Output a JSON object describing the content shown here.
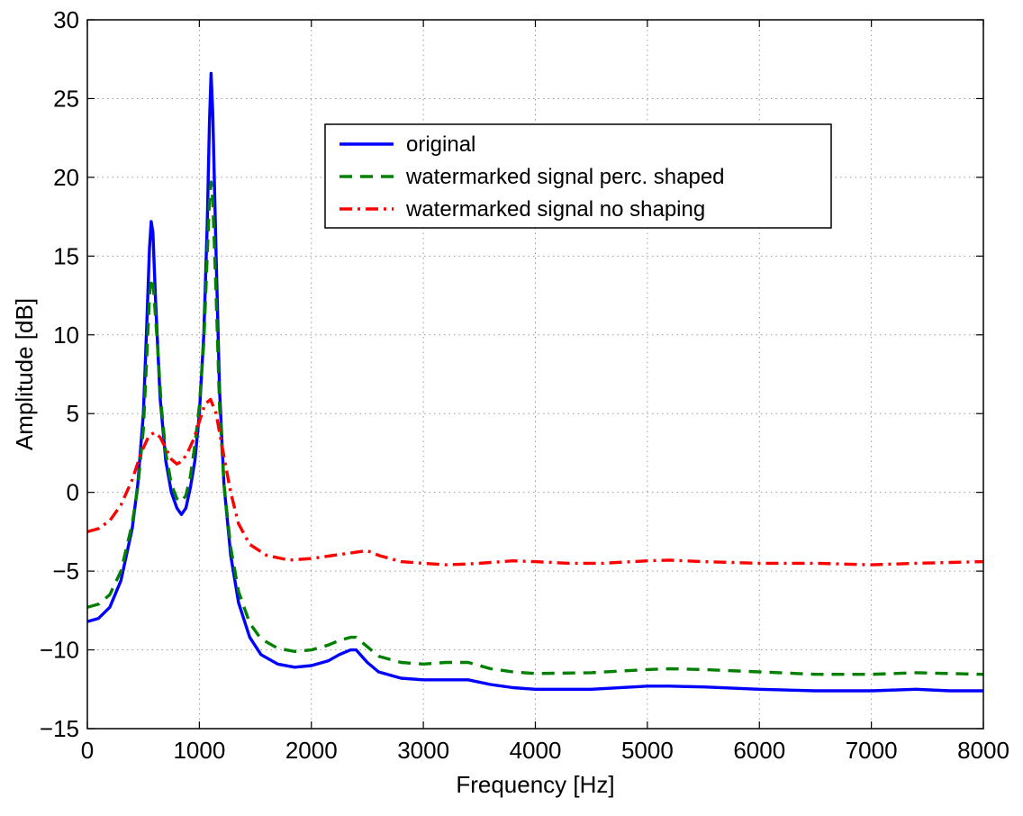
{
  "chart_data": {
    "type": "line",
    "title": "",
    "xlabel": "Frequency [Hz]",
    "ylabel": "Amplitude [dB]",
    "xlim": [
      0,
      8000
    ],
    "ylim": [
      -15,
      30
    ],
    "x_ticks": [
      0,
      1000,
      2000,
      3000,
      4000,
      5000,
      6000,
      7000,
      8000
    ],
    "y_ticks": [
      -15,
      -10,
      -5,
      0,
      5,
      10,
      15,
      20,
      25,
      30
    ],
    "x_tick_labels": [
      "0",
      "1000",
      "2000",
      "3000",
      "4000",
      "5000",
      "6000",
      "7000",
      "8000"
    ],
    "y_tick_labels": [
      "−15",
      "−10",
      "−5",
      "0",
      "5",
      "10",
      "15",
      "20",
      "25",
      "30"
    ],
    "grid": true,
    "legend_position": "top-center",
    "series": [
      {
        "name": "original",
        "color": "#0000ff",
        "style": "solid",
        "points": [
          [
            0,
            -8.2
          ],
          [
            100,
            -8.0
          ],
          [
            200,
            -7.3
          ],
          [
            300,
            -5.6
          ],
          [
            400,
            -2.3
          ],
          [
            450,
            0.5
          ],
          [
            500,
            5.0
          ],
          [
            530,
            10.5
          ],
          [
            555,
            15.5
          ],
          [
            570,
            17.2
          ],
          [
            585,
            16.5
          ],
          [
            610,
            12.0
          ],
          [
            650,
            6.0
          ],
          [
            700,
            2.0
          ],
          [
            750,
            0.0
          ],
          [
            800,
            -1.0
          ],
          [
            840,
            -1.4
          ],
          [
            880,
            -1.0
          ],
          [
            920,
            0.3
          ],
          [
            960,
            2.0
          ],
          [
            1000,
            5.0
          ],
          [
            1040,
            10.0
          ],
          [
            1070,
            17.0
          ],
          [
            1090,
            23.5
          ],
          [
            1105,
            26.6
          ],
          [
            1120,
            24.0
          ],
          [
            1150,
            15.0
          ],
          [
            1180,
            6.5
          ],
          [
            1220,
            0.5
          ],
          [
            1280,
            -4.0
          ],
          [
            1350,
            -7.0
          ],
          [
            1450,
            -9.2
          ],
          [
            1550,
            -10.3
          ],
          [
            1700,
            -10.9
          ],
          [
            1850,
            -11.1
          ],
          [
            2000,
            -11.0
          ],
          [
            2150,
            -10.7
          ],
          [
            2250,
            -10.3
          ],
          [
            2350,
            -10.0
          ],
          [
            2400,
            -10.0
          ],
          [
            2500,
            -10.8
          ],
          [
            2600,
            -11.4
          ],
          [
            2800,
            -11.8
          ],
          [
            3000,
            -11.9
          ],
          [
            3200,
            -11.9
          ],
          [
            3400,
            -11.9
          ],
          [
            3600,
            -12.2
          ],
          [
            3800,
            -12.4
          ],
          [
            4000,
            -12.5
          ],
          [
            4500,
            -12.5
          ],
          [
            5000,
            -12.3
          ],
          [
            5200,
            -12.3
          ],
          [
            5500,
            -12.35
          ],
          [
            6000,
            -12.5
          ],
          [
            6500,
            -12.6
          ],
          [
            7000,
            -12.6
          ],
          [
            7400,
            -12.5
          ],
          [
            7700,
            -12.6
          ],
          [
            8000,
            -12.6
          ]
        ]
      },
      {
        "name": "watermarked signal perc. shaped",
        "color": "#008000",
        "style": "dashed",
        "points": [
          [
            0,
            -7.3
          ],
          [
            100,
            -7.1
          ],
          [
            200,
            -6.5
          ],
          [
            300,
            -5.0
          ],
          [
            400,
            -2.0
          ],
          [
            450,
            0.3
          ],
          [
            500,
            4.0
          ],
          [
            530,
            8.5
          ],
          [
            555,
            12.5
          ],
          [
            570,
            13.6
          ],
          [
            590,
            13.0
          ],
          [
            620,
            10.0
          ],
          [
            660,
            5.5
          ],
          [
            700,
            2.5
          ],
          [
            750,
            0.5
          ],
          [
            800,
            -0.4
          ],
          [
            840,
            -0.6
          ],
          [
            880,
            -0.2
          ],
          [
            920,
            1.0
          ],
          [
            960,
            3.0
          ],
          [
            1000,
            5.5
          ],
          [
            1040,
            9.5
          ],
          [
            1070,
            15.0
          ],
          [
            1090,
            18.5
          ],
          [
            1105,
            19.7
          ],
          [
            1120,
            18.5
          ],
          [
            1150,
            12.5
          ],
          [
            1180,
            5.5
          ],
          [
            1220,
            0.5
          ],
          [
            1280,
            -3.5
          ],
          [
            1350,
            -6.3
          ],
          [
            1450,
            -8.3
          ],
          [
            1550,
            -9.3
          ],
          [
            1700,
            -9.9
          ],
          [
            1850,
            -10.1
          ],
          [
            2000,
            -10.0
          ],
          [
            2150,
            -9.7
          ],
          [
            2250,
            -9.4
          ],
          [
            2350,
            -9.2
          ],
          [
            2400,
            -9.2
          ],
          [
            2500,
            -9.8
          ],
          [
            2600,
            -10.4
          ],
          [
            2800,
            -10.8
          ],
          [
            3000,
            -10.9
          ],
          [
            3200,
            -10.8
          ],
          [
            3400,
            -10.8
          ],
          [
            3600,
            -11.2
          ],
          [
            3800,
            -11.4
          ],
          [
            4000,
            -11.5
          ],
          [
            4500,
            -11.45
          ],
          [
            5000,
            -11.25
          ],
          [
            5200,
            -11.2
          ],
          [
            5500,
            -11.25
          ],
          [
            6000,
            -11.4
          ],
          [
            6500,
            -11.55
          ],
          [
            7000,
            -11.55
          ],
          [
            7400,
            -11.45
          ],
          [
            7700,
            -11.5
          ],
          [
            8000,
            -11.55
          ]
        ]
      },
      {
        "name": "watermarked signal no shaping",
        "color": "#ff0000",
        "style": "dash-dot",
        "points": [
          [
            0,
            -2.5
          ],
          [
            100,
            -2.3
          ],
          [
            200,
            -1.8
          ],
          [
            300,
            -0.8
          ],
          [
            400,
            0.8
          ],
          [
            480,
            2.5
          ],
          [
            550,
            3.6
          ],
          [
            600,
            3.8
          ],
          [
            650,
            3.5
          ],
          [
            700,
            2.8
          ],
          [
            750,
            2.1
          ],
          [
            800,
            1.8
          ],
          [
            850,
            2.0
          ],
          [
            900,
            2.6
          ],
          [
            950,
            3.4
          ],
          [
            1000,
            4.5
          ],
          [
            1050,
            5.6
          ],
          [
            1100,
            5.9
          ],
          [
            1150,
            5.0
          ],
          [
            1200,
            3.0
          ],
          [
            1280,
            0.0
          ],
          [
            1350,
            -2.0
          ],
          [
            1450,
            -3.3
          ],
          [
            1600,
            -4.0
          ],
          [
            1800,
            -4.3
          ],
          [
            2000,
            -4.2
          ],
          [
            2200,
            -4.0
          ],
          [
            2400,
            -3.8
          ],
          [
            2500,
            -3.7
          ],
          [
            2600,
            -4.0
          ],
          [
            2800,
            -4.4
          ],
          [
            3000,
            -4.5
          ],
          [
            3200,
            -4.6
          ],
          [
            3400,
            -4.55
          ],
          [
            3600,
            -4.45
          ],
          [
            3800,
            -4.35
          ],
          [
            4000,
            -4.4
          ],
          [
            4300,
            -4.5
          ],
          [
            4600,
            -4.5
          ],
          [
            5000,
            -4.35
          ],
          [
            5200,
            -4.3
          ],
          [
            5500,
            -4.4
          ],
          [
            6000,
            -4.5
          ],
          [
            6500,
            -4.5
          ],
          [
            7000,
            -4.6
          ],
          [
            7400,
            -4.5
          ],
          [
            7700,
            -4.45
          ],
          [
            8000,
            -4.4
          ]
        ]
      }
    ]
  }
}
